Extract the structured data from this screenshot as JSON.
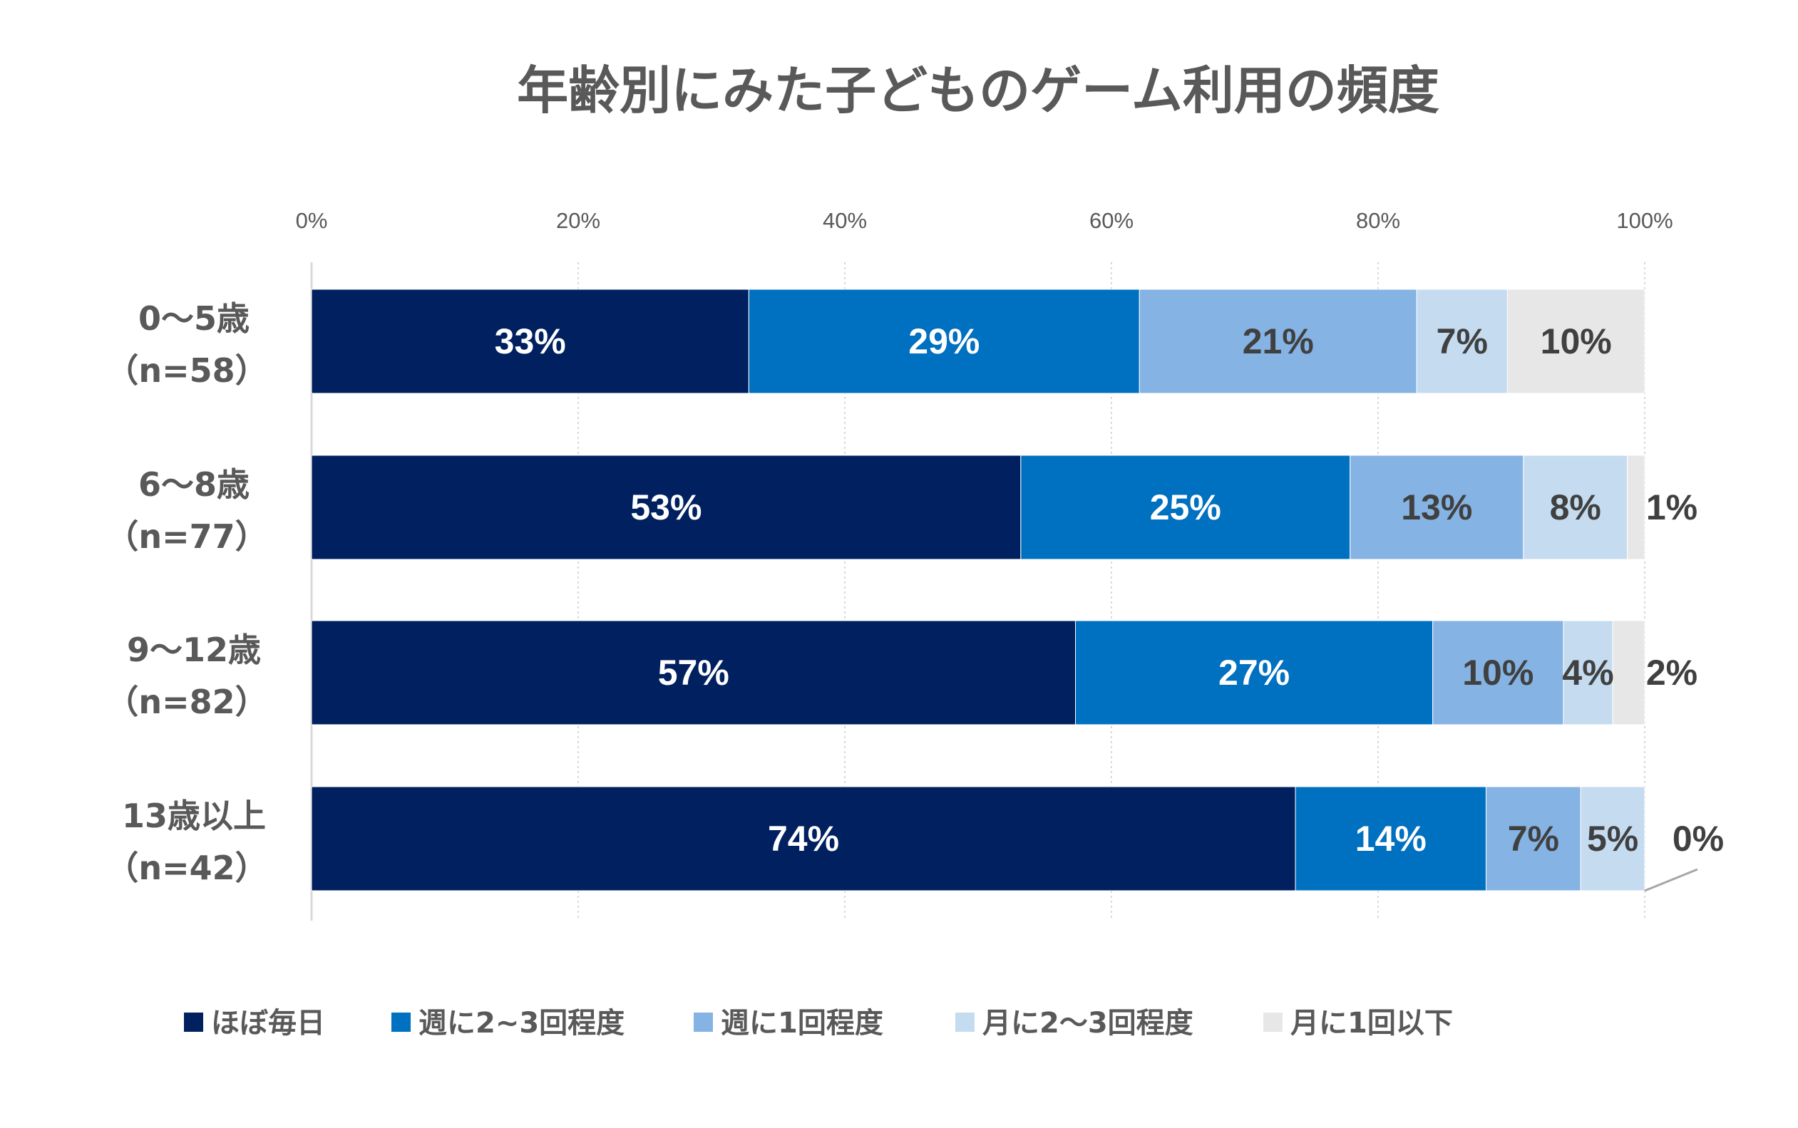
{
  "chart_data": {
    "type": "bar",
    "orientation": "horizontal",
    "stacked": "percent",
    "title": "年齢別にみた子どものゲーム利用の頻度",
    "xlabel": "",
    "ylabel": "",
    "xlim": [
      0,
      100
    ],
    "x_ticks": [
      "0%",
      "20%",
      "40%",
      "60%",
      "80%",
      "100%"
    ],
    "x_tick_values": [
      0,
      20,
      40,
      60,
      80,
      100
    ],
    "grid": "vertical-dotted",
    "legend_position": "bottom",
    "categories": [
      {
        "line1": "0〜5歳",
        "line2": "（n=58）"
      },
      {
        "line1": "6〜8歳",
        "line2": "（n=77）"
      },
      {
        "line1": "9〜12歳",
        "line2": "（n=82）"
      },
      {
        "line1": "13歳以上",
        "line2": "（n=42）"
      }
    ],
    "series": [
      {
        "name": "ほぼ毎日",
        "color": "#002060",
        "label_color": "#ffffff",
        "values": [
          32.8,
          53.2,
          57.3,
          73.8
        ],
        "labels": [
          "33%",
          "53%",
          "57%",
          "74%"
        ]
      },
      {
        "name": "週に2~3回程度",
        "color": "#0070C0",
        "label_color": "#ffffff",
        "values": [
          29.3,
          24.7,
          26.8,
          14.3
        ],
        "labels": [
          "29%",
          "25%",
          "27%",
          "14%"
        ]
      },
      {
        "name": "週に1回程度",
        "color": "#85B3E3",
        "label_color": "#404040",
        "values": [
          20.8,
          13.0,
          9.8,
          7.1
        ],
        "labels": [
          "21%",
          "13%",
          "10%",
          "7%"
        ]
      },
      {
        "name": "月に2〜3回程度",
        "color": "#C5DBF0",
        "label_color": "#404040",
        "values": [
          6.8,
          7.8,
          3.7,
          4.8
        ],
        "labels": [
          "7%",
          "8%",
          "4%",
          "5%"
        ]
      },
      {
        "name": "月に1回以下",
        "color": "#E7E7E7",
        "label_color": "#404040",
        "values": [
          10.3,
          1.3,
          2.4,
          0.0
        ],
        "labels": [
          "10%",
          "1%",
          "2%",
          "0%"
        ]
      }
    ]
  }
}
